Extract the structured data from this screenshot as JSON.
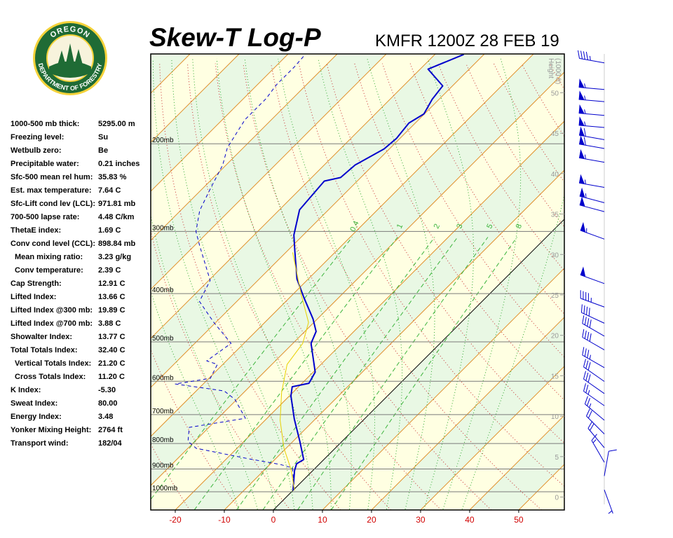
{
  "logo": {
    "top": "OREGON",
    "bottom": "DEPARTMENT OF FORESTRY"
  },
  "stats": [
    {
      "label": "1000-500 mb thick:",
      "value": "5295.00 m"
    },
    {
      "label": "Freezing level:",
      "value": "Su"
    },
    {
      "label": "Wetbulb zero:",
      "value": "Be"
    },
    {
      "label": "Precipitable water:",
      "value": "0.21 inches"
    },
    {
      "label": "Sfc-500 mean rel hum:",
      "value": "35.83 %"
    },
    {
      "label": "Est. max temperature:",
      "value": "7.64 C"
    },
    {
      "label": "Sfc-Lift cond lev (LCL):",
      "value": "971.81 mb"
    },
    {
      "label": "700-500 lapse rate:",
      "value": "4.48 C/km"
    },
    {
      "label": "ThetaE index:",
      "value": "1.69 C"
    },
    {
      "label": "Conv cond level (CCL):",
      "value": "898.84 mb"
    },
    {
      "label": "Mean mixing ratio:",
      "value": "3.23 g/kg"
    },
    {
      "label": "Conv temperature:",
      "value": "2.39 C"
    },
    {
      "label": "Cap Strength:",
      "value": "12.91 C"
    },
    {
      "label": "Lifted Index:",
      "value": "13.66 C"
    },
    {
      "label": "Lifted Index @300 mb:",
      "value": "19.89 C"
    },
    {
      "label": "Lifted Index @700 mb:",
      "value": "3.88 C"
    },
    {
      "label": "Showalter Index:",
      "value": "13.77 C"
    },
    {
      "label": "Total Totals Index:",
      "value": "32.40 C"
    },
    {
      "label": "Vertical Totals Index:",
      "value": "21.20 C"
    },
    {
      "label": "Cross Totals Index:",
      "value": "11.20 C"
    },
    {
      "label": "K Index:",
      "value": "-5.30"
    },
    {
      "label": "Sweat Index:",
      "value": "80.00"
    },
    {
      "label": "Energy Index:",
      "value": "3.48"
    },
    {
      "label": "Yonker Mixing Height:",
      "value": "2764 ft"
    },
    {
      "label": "Transport wind:",
      "value": "182/04"
    }
  ],
  "chart_data": {
    "type": "skew-t",
    "title": "Skew-T Log-P",
    "subtitle": "KMFR 1200Z 28 FEB 19",
    "xlim": [
      -25,
      59.3
    ],
    "xticks": [
      -20,
      -10,
      0,
      10,
      20,
      30,
      40,
      50
    ],
    "ylog": true,
    "ylim": [
      1088,
      132
    ],
    "yticks": [
      {
        "value": 200,
        "label": "200mb"
      },
      {
        "value": 300,
        "label": "300mb"
      },
      {
        "value": 400,
        "label": "400mb"
      },
      {
        "value": 500,
        "label": "500mb"
      },
      {
        "value": 600,
        "label": "600mb"
      },
      {
        "value": 700,
        "label": "700mb"
      },
      {
        "value": 800,
        "label": "800mb"
      },
      {
        "value": 900,
        "label": "900mb"
      },
      {
        "value": 1000,
        "label": "1000mb"
      }
    ],
    "y2label": [
      "Height",
      "(1000 ft)"
    ],
    "y2lim": [
      -1.6,
      54.8
    ],
    "y2ticks": [
      0,
      5,
      10,
      15,
      20,
      25,
      30,
      35,
      40,
      45,
      50
    ],
    "mixing_ratios": [
      0.4,
      1,
      2,
      3,
      5,
      8
    ],
    "series": [
      {
        "color": "#0000cc",
        "style": "solid",
        "width": 2,
        "pressure": [
          993.5,
          907.5,
          878.6,
          861.7,
          792.1,
          714.2,
          641.8,
          615.4,
          605.5,
          575.0,
          503.5,
          476.6,
          449.6,
          408.0,
          373.9,
          327.4,
          305.0,
          271.4,
          237.7,
          233.8,
          220.6,
          204.8,
          195.1,
          181.7,
          174.2,
          162.8,
          153.0,
          141.6,
          132.3
        ],
        "values": [
          0.0,
          -3.7,
          -4.7,
          -4.1,
          -8.6,
          -14.3,
          -19.7,
          -21.3,
          -18.6,
          -19.6,
          -26.3,
          -27.7,
          -30.9,
          -37.0,
          -42.3,
          -48.6,
          -51.9,
          -55.9,
          -56.7,
          -54.1,
          -53.7,
          -51.1,
          -50.7,
          -51.3,
          -50.1,
          -51.4,
          -52.0,
          -58.4,
          -54.1
        ]
      },
      {
        "color": "#0000cc",
        "style": "dashed",
        "width": 1,
        "pressure": [
          993.5,
          895.8,
          881.4,
          858.9,
          831.5,
          818.2,
          792.1,
          742.5,
          711.9,
          652.3,
          627.5,
          607.5,
          591.9,
          554.9,
          545.9,
          503.5,
          456.9,
          414.7,
          376.3,
          320.1,
          300.0,
          272.3,
          247.1,
          220.6,
          203.5,
          178.8,
          162.2,
          152.0,
          140.2,
          132.8
        ],
        "values": [
          0.3,
          -4.7,
          -7.9,
          -15.4,
          -24.0,
          -28.3,
          -31.4,
          -34.0,
          -24.4,
          -30.4,
          -34.3,
          -45.7,
          -39.7,
          -41.1,
          -44.0,
          -42.6,
          -50.4,
          -57.6,
          -59.7,
          -69.0,
          -72.6,
          -76.1,
          -78.3,
          -80.7,
          -83.3,
          -85.4,
          -85.4,
          -86.1,
          -86.1,
          -86.4
        ]
      },
      {
        "color": "#e8d000",
        "style": "solid",
        "width": 1,
        "pressure": [
          993.5,
          901.6,
          818.2,
          718.8,
          631.6,
          554.9,
          503.5,
          456.9,
          401.5,
          330.6
        ],
        "values": [
          0.3,
          -4.7,
          -10.4,
          -16.9,
          -22.3,
          -26.9,
          -28.0,
          -31.1,
          -38.3,
          -48.6
        ]
      }
    ],
    "winds": {
      "height": [
        53.7,
        50.4,
        48.9,
        47.2,
        45.7,
        44.2,
        43.1,
        41.4,
        38.3,
        36.4,
        35.3,
        31.9,
        26.4,
        23.5,
        21.5,
        19.9,
        18.2,
        16.0,
        14.3,
        12.8,
        11.3,
        9.5,
        7.8,
        6.1,
        4.3,
        2.6,
        0.9
      ],
      "direction": [
        280,
        275,
        275,
        275,
        275,
        280,
        280,
        280,
        280,
        285,
        285,
        290,
        290,
        290,
        295,
        300,
        300,
        300,
        305,
        305,
        305,
        310,
        315,
        320,
        330,
        10,
        160
      ],
      "speed": [
        45,
        55,
        55,
        55,
        55,
        60,
        60,
        55,
        55,
        55,
        50,
        55,
        50,
        45,
        40,
        40,
        40,
        35,
        30,
        30,
        25,
        25,
        20,
        20,
        15,
        10,
        5
      ]
    }
  }
}
